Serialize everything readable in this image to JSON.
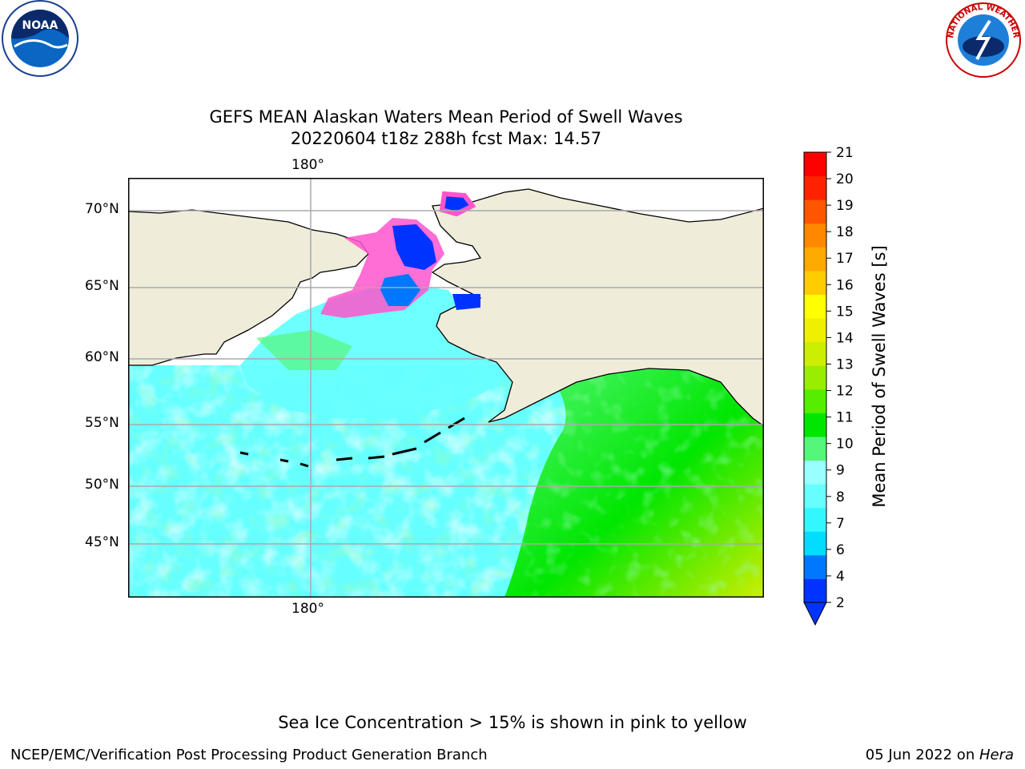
{
  "title": {
    "line1": "GEFS MEAN Alaskan Waters Mean Period of Swell Waves",
    "line2": "20220604 t18z 288h fcst   Max: 14.57"
  },
  "map": {
    "longitude_label_top": "180°",
    "longitude_label_bottom": "180°",
    "latitude_labels": [
      "70°N",
      "65°N",
      "60°N",
      "55°N",
      "50°N",
      "45°N"
    ],
    "land_color": "#efedda",
    "gridlines": true
  },
  "colorbar": {
    "label": "Mean Period of Swell Waves [s]",
    "ticks": [
      "2",
      "4",
      "6",
      "7",
      "8",
      "9",
      "10",
      "11",
      "12",
      "13",
      "14",
      "15",
      "16",
      "17",
      "18",
      "19",
      "20",
      "21"
    ],
    "colors": [
      "#0033ff",
      "#0077ff",
      "#00ddff",
      "#33f7ff",
      "#66ffff",
      "#99ffff",
      "#55f77a",
      "#00e600",
      "#55ee00",
      "#99ee00",
      "#ccee00",
      "#eef000",
      "#ffff00",
      "#ffcc00",
      "#ffaa00",
      "#ff8800",
      "#ff5500",
      "#ff2200",
      "#ff0000"
    ],
    "extend": "min"
  },
  "logos": {
    "noaa_text": "NOAA",
    "nws_text": "NATIONAL WEATHER SERVICE"
  },
  "footer": {
    "note": "Sea Ice Concentration > 15% is shown in pink to yellow",
    "left": "NCEP/EMC/Verification Post Processing Product Generation Branch",
    "date": "05 Jun 2022 on ",
    "host": "Hera"
  }
}
